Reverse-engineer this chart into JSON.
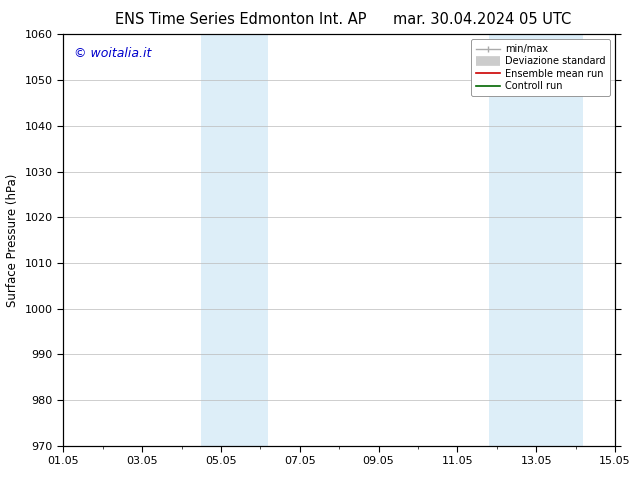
{
  "title_left": "ENS Time Series Edmonton Int. AP",
  "title_right": "mar. 30.04.2024 05 UTC",
  "ylabel": "Surface Pressure (hPa)",
  "ylim": [
    970,
    1060
  ],
  "yticks": [
    970,
    980,
    990,
    1000,
    1010,
    1020,
    1030,
    1040,
    1050,
    1060
  ],
  "xtick_labels": [
    "01.05",
    "03.05",
    "05.05",
    "07.05",
    "09.05",
    "11.05",
    "13.05",
    "15.05"
  ],
  "xtick_positions": [
    0,
    2,
    4,
    6,
    8,
    10,
    12,
    14
  ],
  "xlim": [
    0,
    14
  ],
  "shaded_bands": [
    {
      "x_start": 3.5,
      "x_end": 5.2,
      "color": "#ddeef8"
    },
    {
      "x_start": 10.8,
      "x_end": 13.2,
      "color": "#ddeef8"
    }
  ],
  "watermark": "© woitalia.it",
  "watermark_color": "#0000cc",
  "legend_entries": [
    {
      "label": "min/max",
      "color": "#aaaaaa",
      "linestyle": "-",
      "linewidth": 1.0
    },
    {
      "label": "Deviazione standard",
      "color": "#cccccc",
      "linestyle": "-",
      "linewidth": 7
    },
    {
      "label": "Ensemble mean run",
      "color": "#cc0000",
      "linestyle": "-",
      "linewidth": 1.2
    },
    {
      "label": "Controll run",
      "color": "#006600",
      "linestyle": "-",
      "linewidth": 1.2
    }
  ],
  "background_color": "#ffffff",
  "plot_bg_color": "#ffffff",
  "grid_color": "#bbbbbb",
  "title_fontsize": 10.5,
  "axis_fontsize": 8.5,
  "tick_fontsize": 8,
  "watermark_fontsize": 9
}
